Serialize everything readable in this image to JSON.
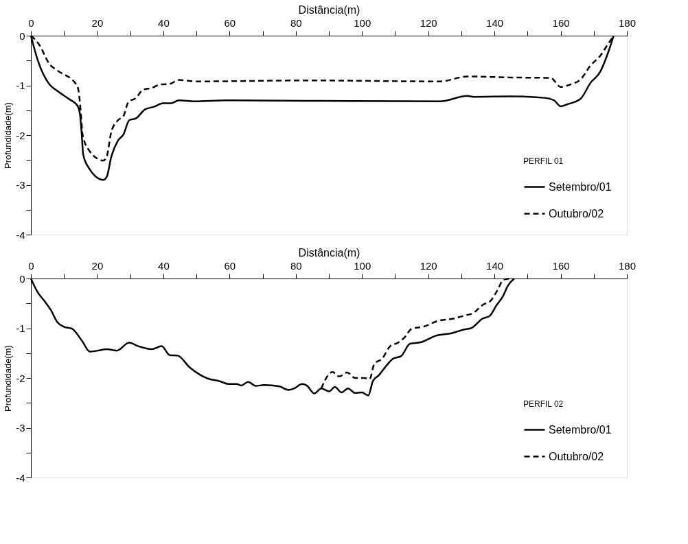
{
  "chart_data": [
    {
      "type": "line",
      "xlabel": "Distância(m)",
      "ylabel": "Profundidade(m)",
      "legend_title": "PERFIL 01",
      "legend": "bottom right",
      "grid": false,
      "xlim": [
        0,
        180
      ],
      "ylim": [
        -4,
        0
      ],
      "xticks": [
        0,
        {
          "value": 10,
          "label": null
        },
        20,
        {
          "value": 30,
          "label": null
        },
        40,
        {
          "value": 50,
          "label": null
        },
        60,
        {
          "value": 70,
          "label": null
        },
        80,
        {
          "value": 90,
          "label": null
        },
        100,
        {
          "value": 110,
          "label": null
        },
        120,
        {
          "value": 130,
          "label": null
        },
        140,
        {
          "value": 150,
          "label": null
        },
        160,
        {
          "value": 170,
          "label": null
        },
        180
      ],
      "yticks": [
        -4,
        {
          "value": -3.5,
          "label": null
        },
        -3,
        {
          "value": -2.5,
          "label": null
        },
        -2,
        {
          "value": -1.5,
          "label": null
        },
        -1,
        {
          "value": -0.5,
          "label": null
        },
        0
      ],
      "series": [
        {
          "name": "Setembro/01",
          "color": "#000000",
          "line_style": "solid",
          "x": [
            0,
            2.2,
            5.6,
            8,
            11.4,
            14.1,
            14.8,
            15.3,
            15.8,
            17.5,
            21.9,
            22.9,
            24.3,
            26.3,
            28,
            29.7,
            31.8,
            34.5,
            37.2,
            39.9,
            42.3,
            44.7,
            49.5,
            59,
            83.5,
            123.6,
            131.8,
            133.8,
            144.7,
            155,
            158,
            160,
            162,
            166,
            169,
            172,
            174,
            176
          ],
          "values": [
            0,
            -0.52,
            -0.98,
            -1.11,
            -1.27,
            -1.41,
            -1.57,
            -1.93,
            -2.39,
            -2.66,
            -2.9,
            -2.84,
            -2.43,
            -2.11,
            -1.98,
            -1.7,
            -1.66,
            -1.48,
            -1.43,
            -1.36,
            -1.36,
            -1.3,
            -1.32,
            -1.3,
            -1.31,
            -1.32,
            -1.21,
            -1.23,
            -1.22,
            -1.25,
            -1.3,
            -1.42,
            -1.38,
            -1.27,
            -0.95,
            -0.72,
            -0.4,
            0
          ]
        },
        {
          "name": "Outubro/02",
          "color": "#000000",
          "line_style": "dashed",
          "x": [
            0,
            2.5,
            5.6,
            8,
            13.7,
            14.4,
            15.1,
            15.6,
            17.5,
            21.9,
            22.9,
            24.3,
            26.3,
            28,
            29.4,
            31.8,
            33.8,
            36.5,
            39.2,
            41.9,
            44.7,
            49.5,
            83.5,
            123.6,
            131.8,
            144.7,
            157,
            160,
            163,
            166,
            169,
            172,
            174,
            176
          ],
          "values": [
            0,
            -0.18,
            -0.57,
            -0.7,
            -0.98,
            -1.11,
            -1.57,
            -1.98,
            -2.3,
            -2.51,
            -2.43,
            -1.93,
            -1.7,
            -1.61,
            -1.34,
            -1.25,
            -1.09,
            -1.05,
            -0.98,
            -0.97,
            -0.89,
            -0.92,
            -0.9,
            -0.92,
            -0.82,
            -0.84,
            -0.85,
            -1.03,
            -0.98,
            -0.88,
            -0.6,
            -0.4,
            -0.2,
            0
          ]
        }
      ]
    },
    {
      "type": "line",
      "xlabel": "Distância(m)",
      "ylabel": "Profundidade(m)",
      "legend_title": "PERFIL 02",
      "legend": "bottom right",
      "grid": false,
      "xlim": [
        0,
        180
      ],
      "ylim": [
        -4,
        0
      ],
      "xticks": [
        0,
        {
          "value": 10,
          "label": null
        },
        20,
        {
          "value": 30,
          "label": null
        },
        40,
        {
          "value": 50,
          "label": null
        },
        60,
        {
          "value": 70,
          "label": null
        },
        80,
        {
          "value": 90,
          "label": null
        },
        100,
        {
          "value": 110,
          "label": null
        },
        120,
        {
          "value": 130,
          "label": null
        },
        140,
        {
          "value": 150,
          "label": null
        },
        160,
        {
          "value": 170,
          "label": null
        },
        180
      ],
      "yticks": [
        -4,
        {
          "value": -3.5,
          "label": null
        },
        -3,
        {
          "value": -2.5,
          "label": null
        },
        -2,
        {
          "value": -1.5,
          "label": null
        },
        -1,
        {
          "value": -0.5,
          "label": null
        },
        0
      ],
      "series": [
        {
          "name": "Setembro/01",
          "color": "#000000",
          "line_style": "solid",
          "x": [
            0,
            1.9,
            4.3,
            6,
            8,
            10,
            12.4,
            15.5,
            17.8,
            20.2,
            22.9,
            25.9,
            29.7,
            32.4,
            36.5,
            39.5,
            41.9,
            44.3,
            48,
            53.4,
            56.8,
            59.7,
            62.1,
            63.6,
            65.6,
            68,
            70.4,
            75.1,
            77.8,
            79.5,
            81.9,
            83.3,
            85.6,
            87.7,
            90.1,
            91.8,
            93.8,
            95.8,
            97.9,
            99.9,
            101.9,
            103.3,
            105,
            107.4,
            109.4,
            111.8,
            114.5,
            117.9,
            122.3,
            127.1,
            130.5,
            133.2,
            136.3,
            138.6,
            140.6,
            142.7,
            144,
            146
          ],
          "values": [
            0,
            -0.26,
            -0.47,
            -0.63,
            -0.88,
            -0.97,
            -1.01,
            -1.26,
            -1.47,
            -1.45,
            -1.42,
            -1.45,
            -1.29,
            -1.36,
            -1.42,
            -1.36,
            -1.54,
            -1.55,
            -1.79,
            -2.01,
            -2.06,
            -2.12,
            -2.12,
            -2.15,
            -2.08,
            -2.16,
            -2.14,
            -2.17,
            -2.24,
            -2.21,
            -2.12,
            -2.15,
            -2.31,
            -2.21,
            -2.27,
            -2.18,
            -2.29,
            -2.21,
            -2.3,
            -2.29,
            -2.35,
            -2.06,
            -1.95,
            -1.75,
            -1.61,
            -1.56,
            -1.31,
            -1.28,
            -1.15,
            -1.1,
            -1.03,
            -0.99,
            -0.81,
            -0.75,
            -0.54,
            -0.34,
            -0.15,
            0
          ]
        },
        {
          "name": "Outubro/02",
          "color": "#000000",
          "line_style": "dashed",
          "x": [
            87.7,
            89.7,
            91.1,
            93.1,
            95.5,
            97.9,
            100.6,
            102.3,
            103.7,
            106.1,
            108.5,
            110.9,
            112.9,
            115,
            118.4,
            123.1,
            127.2,
            131.3,
            133.4,
            136.7,
            138.8,
            140.8,
            142.8,
            145.5
          ],
          "values": [
            -2.21,
            -1.95,
            -1.88,
            -1.97,
            -1.89,
            -2.0,
            -2.0,
            -2.02,
            -1.72,
            -1.61,
            -1.36,
            -1.29,
            -1.18,
            -1.01,
            -0.97,
            -0.85,
            -0.81,
            -0.74,
            -0.7,
            -0.52,
            -0.45,
            -0.25,
            -0.02,
            0
          ]
        }
      ]
    }
  ]
}
